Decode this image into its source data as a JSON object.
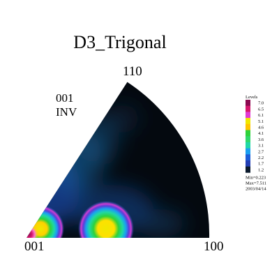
{
  "chart_data": {
    "type": "heatmap",
    "title": "D3_Trigonal",
    "projection": [
      "001",
      "INV"
    ],
    "pole_labels": {
      "origin": "001",
      "right": "100",
      "top": "110"
    },
    "legend": {
      "title": "Levels",
      "placement": "right",
      "levels": [
        {
          "value": "7.0",
          "color": "#8b0a50"
        },
        {
          "value": "6.5",
          "color": "#d6176c"
        },
        {
          "value": "6.1",
          "color": "#e23ad2"
        },
        {
          "value": "5.1",
          "color": "#f0e800"
        },
        {
          "value": "4.6",
          "color": "#ffc400"
        },
        {
          "value": "4.1",
          "color": "#2ed23a"
        },
        {
          "value": "3.6",
          "color": "#2fd86a"
        },
        {
          "value": "3.1",
          "color": "#20d7a6"
        },
        {
          "value": "2.7",
          "color": "#1a9ff0"
        },
        {
          "value": "2.2",
          "color": "#1b5dd8"
        },
        {
          "value": "1.7",
          "color": "#233fb4"
        },
        {
          "value": "1.2",
          "color": "#0b1a2c"
        }
      ],
      "stats": [
        "Min=0.223",
        "Max=7.511",
        "2003/04/14"
      ]
    },
    "background_color": "#04090f",
    "features": [
      {
        "name": "max-peak",
        "x": 0.02,
        "y": 0.03,
        "level": 7.5
      },
      {
        "name": "ring-left",
        "x": 0.06,
        "y": 0.03,
        "level": 5.0
      },
      {
        "name": "peak-center",
        "x": 0.41,
        "y": 0.04,
        "level": 4.8
      },
      {
        "name": "haze",
        "x": 0.1,
        "y": 0.35,
        "level": 2.0
      }
    ]
  }
}
